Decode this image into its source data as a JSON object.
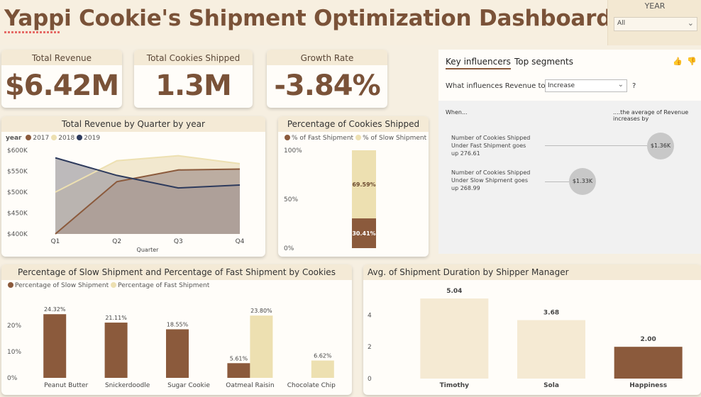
{
  "title": "Yappi Cookie's Shipment Optimization Dashboard",
  "slicer": {
    "label": "YEAR",
    "value": "All"
  },
  "kpis": [
    {
      "label": "Total Revenue",
      "value": "$6.42M"
    },
    {
      "label": "Total Cookies Shipped",
      "value": "1.3M"
    },
    {
      "label": "Growth Rate",
      "value": "-3.84%"
    }
  ],
  "colors": {
    "brown": "#8b5a3c",
    "cream": "#ede0b1",
    "navy": "#2d3a5c",
    "panel_header": "#f4ead6"
  },
  "revenue_chart": {
    "title": "Total Revenue by Quarter by year",
    "legend_title": "year",
    "xlabel": "Quarter"
  },
  "pct_chart": {
    "title": "Percentage of Cookies Shipped"
  },
  "slow_fast_chart": {
    "title": "Percentage of Slow Shipment and Percentage of Fast Shipment by Cookies"
  },
  "duration_chart": {
    "title": "Avg. of Shipment Duration by Shipper Manager"
  },
  "key_influencers": {
    "tab_active": "Key influencers",
    "tab_other": "Top segments",
    "question_prefix": "What influences Revenue to",
    "dropdown_value": "Increase",
    "question_mark": "?",
    "col_left": "When...",
    "col_right_line1": "....the average of Revenue",
    "col_right_line2": "increases by",
    "items": [
      {
        "line1": "Number of Cookies Shipped",
        "line2": "Under Fast Shipment goes",
        "line3": "up 276.61",
        "value": "$1.36K"
      },
      {
        "line1": "Number of Cookies Shipped",
        "line2": "Under Slow Shipment goes",
        "line3": "up 268.99",
        "value": "$1.33K"
      }
    ]
  },
  "chart_data": [
    {
      "type": "area",
      "title": "Total Revenue by Quarter by year",
      "xlabel": "Quarter",
      "ylabel": "",
      "categories": [
        "Q1",
        "Q2",
        "Q3",
        "Q4"
      ],
      "series": [
        {
          "name": "2017",
          "values": [
            400,
            525,
            553,
            555
          ]
        },
        {
          "name": "2018",
          "values": [
            500,
            575,
            587,
            568
          ]
        },
        {
          "name": "2019",
          "values": [
            582,
            540,
            510,
            517
          ]
        }
      ],
      "ylim": [
        400,
        600
      ],
      "yticks": [
        "$400K",
        "$450K",
        "$500K",
        "$550K",
        "$600K"
      ],
      "legend_title": "year",
      "legend_position": "top-left"
    },
    {
      "type": "bar",
      "title": "Percentage of Cookies Shipped",
      "categories": [
        ""
      ],
      "series": [
        {
          "name": "% of Fast Shipment",
          "values": [
            30.41
          ],
          "label": "30.41%"
        },
        {
          "name": "% of Slow Shipment",
          "values": [
            69.59
          ],
          "label": "69.59%"
        }
      ],
      "stacked": true,
      "ylim": [
        0,
        100
      ],
      "yticks": [
        "0%",
        "50%",
        "100%"
      ],
      "legend_position": "top-left"
    },
    {
      "type": "bar",
      "title": "Percentage of Slow Shipment and Percentage of Fast Shipment by Cookies",
      "categories": [
        "Peanut Butter",
        "Snickerdoodle",
        "Sugar Cookie",
        "Oatmeal Raisin",
        "Chocolate Chip"
      ],
      "series": [
        {
          "name": "Percentage of Slow Shipment",
          "values": [
            24.32,
            21.11,
            18.55,
            5.61,
            null
          ],
          "labels": [
            "24.32%",
            "21.11%",
            "18.55%",
            "5.61%",
            ""
          ]
        },
        {
          "name": "Percentage of Fast Shipment",
          "values": [
            null,
            null,
            null,
            23.8,
            6.62
          ],
          "labels": [
            "",
            "",
            "",
            "23.80%",
            "6.62%"
          ]
        }
      ],
      "ylim": [
        0,
        26
      ],
      "yticks": [
        "0%",
        "10%",
        "20%"
      ],
      "legend_position": "top-left"
    },
    {
      "type": "bar",
      "title": "Avg. of Shipment Duration by Shipper Manager",
      "categories": [
        "Timothy",
        "Sola",
        "Happiness"
      ],
      "values": [
        5.04,
        3.68,
        2.0
      ],
      "labels": [
        "5.04",
        "3.68",
        "2.00"
      ],
      "ylim": [
        0,
        5.4
      ],
      "yticks": [
        "0",
        "2",
        "4"
      ]
    }
  ]
}
